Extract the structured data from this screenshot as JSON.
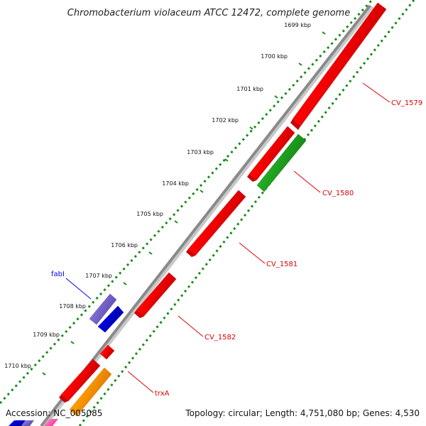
{
  "title": "Chromobacterium violaceum ATCC 12472, complete genome",
  "accession": "Accession: NC_005085",
  "summary": "Topology: circular; Length: 4,751,080 bp; Genes: 4,530",
  "ticks": [
    "1699 kbp",
    "1700 kbp",
    "1701 kbp",
    "1702 kbp",
    "1703 kbp",
    "1704 kbp",
    "1705 kbp",
    "1706 kbp",
    "1707 kbp",
    "1708 kbp",
    "1709 kbp",
    "1710 kbp"
  ],
  "gene_labels": {
    "cv1579": "CV_1579",
    "cv1580": "CV_1580",
    "cv1581": "CV_1581",
    "cv1582": "CV_1582",
    "trxa": "trxA",
    "fabi": "fabI"
  },
  "colors": {
    "red": "#ff0000",
    "green": "#22aa22",
    "blue": "#0000dd",
    "purple": "#7b68cf",
    "orange": "#ff9900",
    "backbone": "#888888",
    "dots": "#1a8a1a",
    "label_red": "#dd0000",
    "label_blue": "#0000ee"
  }
}
